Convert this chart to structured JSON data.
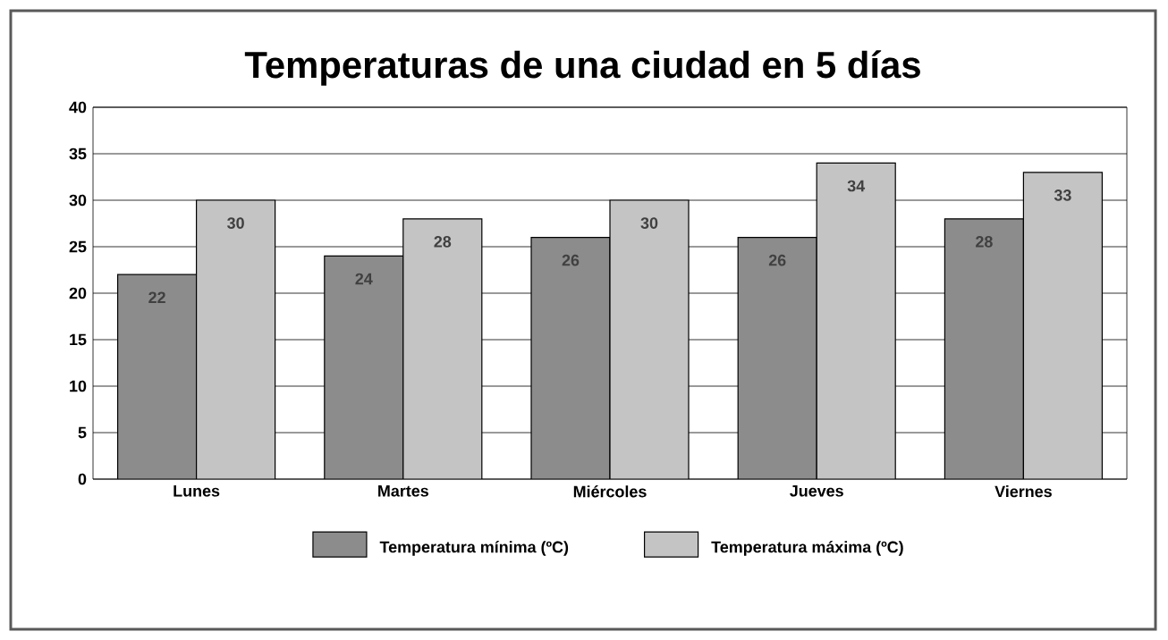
{
  "chart_data": {
    "type": "bar",
    "title": "Temperaturas de una ciudad en 5 días",
    "categories": [
      "Lunes",
      "Martes",
      "Miércoles",
      "Jueves",
      "Viernes"
    ],
    "series": [
      {
        "name": "Temperatura mínima (ºC)",
        "color": "#8c8c8c",
        "values": [
          22,
          24,
          26,
          26,
          28
        ]
      },
      {
        "name": "Temperatura máxima (ºC)",
        "color": "#c4c4c4",
        "values": [
          30,
          28,
          30,
          34,
          33
        ]
      }
    ],
    "ylim": [
      0,
      40
    ],
    "yticks": [
      0,
      5,
      10,
      15,
      20,
      25,
      30,
      35,
      40
    ],
    "grid": "y",
    "legend": "bottom",
    "data_labels": true
  }
}
